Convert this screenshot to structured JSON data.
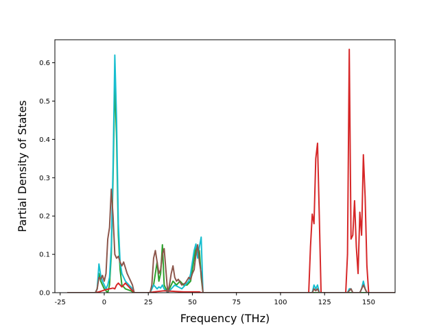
{
  "chart_data": {
    "type": "line",
    "title": "",
    "xlabel": "Frequency (THz)",
    "ylabel": "Partial Density of States",
    "xlim": [
      -28,
      165
    ],
    "ylim": [
      0,
      0.66
    ],
    "xticks": [
      -25,
      0,
      25,
      50,
      75,
      100,
      125,
      150
    ],
    "yticks": [
      0.0,
      0.1,
      0.2,
      0.3,
      0.4,
      0.5,
      0.6
    ],
    "ytick_labels": [
      "0.0",
      "0.1",
      "0.2",
      "0.3",
      "0.4",
      "0.5",
      "0.6"
    ],
    "grid": false,
    "legend": null,
    "series": [
      {
        "color": "#2ca02c",
        "x": [
          -21,
          -5,
          -4,
          -3,
          -2,
          -1,
          0,
          2,
          3,
          4,
          5,
          6,
          7,
          8,
          9,
          10,
          12,
          15,
          17,
          26,
          28,
          29,
          30,
          31,
          32,
          33,
          34,
          36,
          38,
          39,
          41,
          43,
          45,
          47,
          49,
          50,
          51,
          52,
          53,
          54,
          55,
          56,
          165
        ],
        "y": [
          0,
          0,
          0.01,
          0.05,
          0.03,
          0.02,
          0.01,
          0.0,
          0.02,
          0.1,
          0.3,
          0.55,
          0.4,
          0.15,
          0.06,
          0.02,
          0.01,
          0.005,
          0,
          0,
          0.02,
          0.05,
          0.08,
          0.03,
          0.05,
          0.125,
          0.02,
          0,
          0.02,
          0.03,
          0.02,
          0.03,
          0.02,
          0.02,
          0.03,
          0.06,
          0.09,
          0.12,
          0.1,
          0.11,
          0.04,
          0,
          0
        ]
      },
      {
        "color": "#17becf",
        "x": [
          -21,
          -5,
          -4,
          -3,
          -2,
          -1,
          0,
          1,
          2,
          3,
          4,
          5,
          6,
          7,
          8,
          9,
          10,
          11,
          12,
          14,
          16,
          17,
          26,
          27,
          28,
          29,
          30,
          31,
          32,
          33,
          34,
          36,
          38,
          40,
          42,
          44,
          46,
          48,
          49,
          50,
          51,
          52,
          53,
          54,
          55,
          56,
          118,
          119,
          120,
          121,
          122,
          138,
          139,
          140,
          141,
          145,
          146,
          147,
          148,
          149,
          165
        ],
        "y": [
          0,
          0,
          0.01,
          0.075,
          0.045,
          0.03,
          0.02,
          0.01,
          0.02,
          0.04,
          0.12,
          0.33,
          0.62,
          0.45,
          0.18,
          0.08,
          0.05,
          0.04,
          0.03,
          0.02,
          0.01,
          0,
          0,
          0.01,
          0.02,
          0.015,
          0.01,
          0.015,
          0.012,
          0.02,
          0.01,
          0,
          0.01,
          0.02,
          0.015,
          0.01,
          0.02,
          0.03,
          0.05,
          0.08,
          0.11,
          0.127,
          0.09,
          0.12,
          0.145,
          0,
          0,
          0.02,
          0.01,
          0.02,
          0,
          0,
          0.01,
          0.01,
          0,
          0,
          0.01,
          0.03,
          0.01,
          0,
          0
        ]
      },
      {
        "color": "#d62728",
        "x": [
          -21,
          -5,
          -3,
          -1,
          1,
          3,
          5,
          6,
          7,
          8,
          9,
          10,
          11,
          12,
          13,
          14,
          15,
          16,
          17,
          25,
          30,
          34,
          45,
          54,
          55,
          116,
          117,
          118,
          119,
          120,
          121,
          122,
          123,
          137,
          138,
          139,
          140,
          141,
          142,
          143,
          144,
          145,
          146,
          147,
          148,
          149,
          150,
          165
        ],
        "y": [
          0,
          0,
          0.002,
          0.005,
          0.008,
          0.01,
          0.012,
          0.01,
          0.02,
          0.025,
          0.02,
          0.015,
          0.02,
          0.025,
          0.02,
          0.015,
          0.01,
          0.005,
          0,
          0,
          0.003,
          0.005,
          0.002,
          0.002,
          0,
          0,
          0.12,
          0.205,
          0.18,
          0.35,
          0.39,
          0.2,
          0,
          0,
          0.1,
          0.635,
          0.14,
          0.15,
          0.24,
          0.12,
          0.05,
          0.21,
          0.15,
          0.36,
          0.25,
          0.07,
          0,
          0
        ]
      },
      {
        "color": "#8c564b",
        "x": [
          -21,
          -5,
          -4,
          -3,
          -2,
          -1,
          0,
          1,
          2,
          3,
          4,
          5,
          6,
          7,
          8,
          9,
          10,
          11,
          12,
          13,
          14,
          15,
          16,
          17,
          26,
          27,
          28,
          29,
          30,
          31,
          32,
          33,
          34,
          36,
          37,
          38,
          39,
          40,
          41,
          42,
          44,
          46,
          48,
          49,
          50,
          51,
          52,
          53,
          54,
          55,
          56,
          118,
          119,
          120,
          121,
          122,
          138,
          139,
          140,
          141,
          145,
          146,
          147,
          148,
          149,
          165
        ],
        "y": [
          0,
          0,
          0.01,
          0.04,
          0.035,
          0.045,
          0.03,
          0.05,
          0.14,
          0.17,
          0.27,
          0.2,
          0.1,
          0.09,
          0.095,
          0.08,
          0.07,
          0.08,
          0.065,
          0.05,
          0.04,
          0.03,
          0.02,
          0,
          0,
          0.02,
          0.09,
          0.11,
          0.08,
          0.05,
          0.06,
          0.1,
          0.115,
          0,
          0.02,
          0.05,
          0.07,
          0.04,
          0.03,
          0.035,
          0.02,
          0.025,
          0.04,
          0.035,
          0.05,
          0.06,
          0.1,
          0.125,
          0.08,
          0.05,
          0,
          0,
          0.01,
          0.005,
          0.01,
          0,
          0,
          0.005,
          0.01,
          0,
          0,
          0.01,
          0.02,
          0.01,
          0,
          0
        ]
      }
    ]
  }
}
